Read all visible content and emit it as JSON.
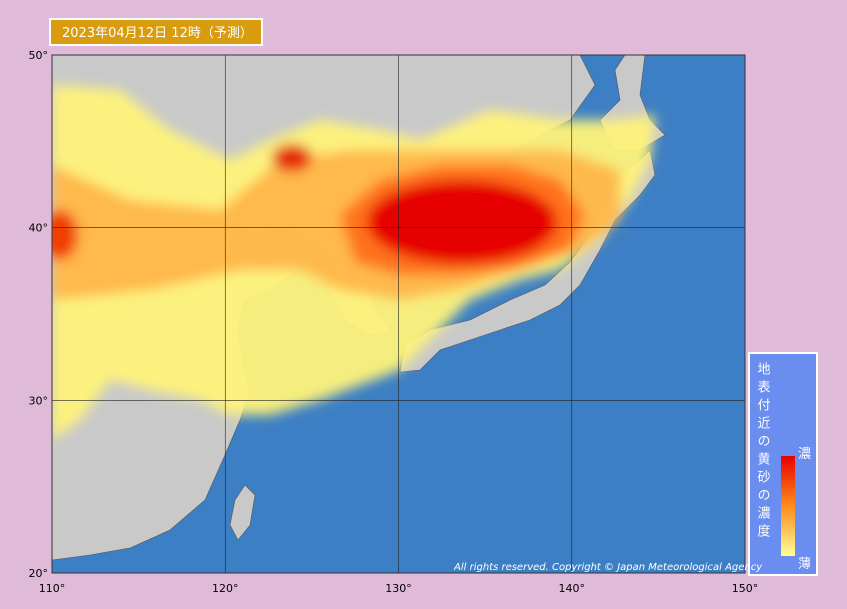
{
  "title": "2023年04月12日 12時（予測）",
  "map": {
    "lon_range": [
      110,
      150
    ],
    "lat_range": [
      20,
      50
    ],
    "lon_ticks": [
      {
        "value": 110,
        "label": "110°"
      },
      {
        "value": 120,
        "label": "120°"
      },
      {
        "value": 130,
        "label": "130°"
      },
      {
        "value": 140,
        "label": "140°"
      },
      {
        "value": 150,
        "label": "150°"
      }
    ],
    "lat_ticks": [
      {
        "value": 50,
        "label": "50°"
      },
      {
        "value": 40,
        "label": "40°"
      },
      {
        "value": 30,
        "label": "30°"
      },
      {
        "value": 20,
        "label": "20°"
      }
    ]
  },
  "legend": {
    "title": "地表付近の黄砂の濃度",
    "high": "濃",
    "low": "薄"
  },
  "copyright": "All rights reserved. Copyright © Japan Meteorological Agency"
}
